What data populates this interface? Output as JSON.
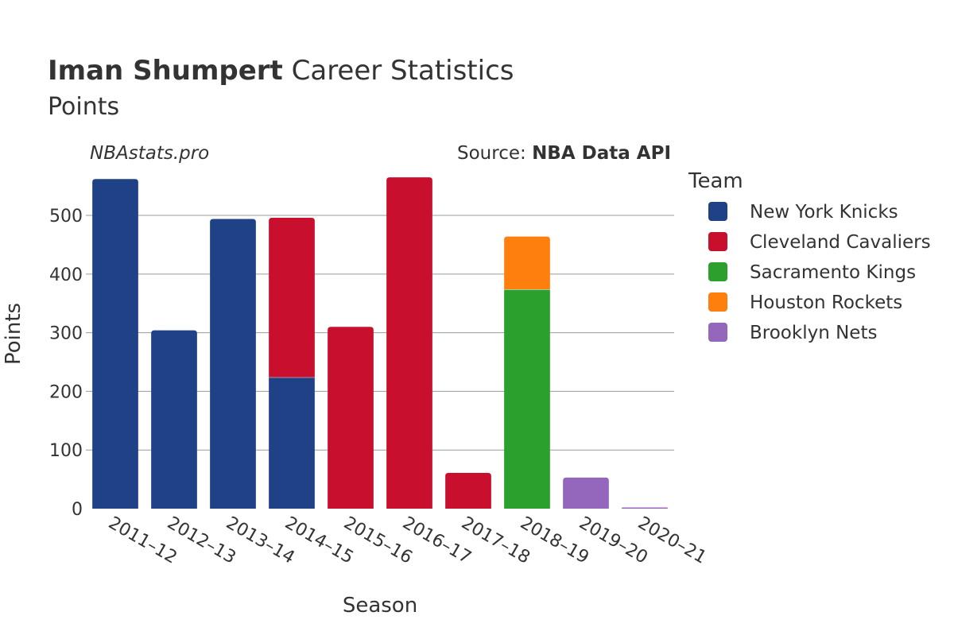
{
  "chart_data": {
    "type": "bar",
    "stacked": true,
    "title_bold": "Iman Shumpert",
    "title_rest": " Career Statistics",
    "subtitle": "Points",
    "watermark": "NBAstats.pro",
    "source_label": "Source: ",
    "source_name": "NBA Data API",
    "xlabel": "Season",
    "ylabel": "Points",
    "ylim": [
      0,
      580
    ],
    "yticks": [
      0,
      100,
      200,
      300,
      400,
      500
    ],
    "grid": true,
    "legend_title": "Team",
    "legend_position": "right",
    "categories": [
      "2011–12",
      "2012–13",
      "2013–14",
      "2014–15",
      "2015–16",
      "2016–17",
      "2017–18",
      "2018–19",
      "2019–20",
      "2020–21"
    ],
    "series": [
      {
        "name": "New York Knicks",
        "color": "#1f4287",
        "values": [
          562,
          304,
          494,
          224,
          0,
          0,
          0,
          0,
          0,
          0
        ]
      },
      {
        "name": "Cleveland Cavaliers",
        "color": "#c8102e",
        "values": [
          0,
          0,
          0,
          272,
          310,
          565,
          61,
          0,
          0,
          0
        ]
      },
      {
        "name": "Sacramento Kings",
        "color": "#2ca02c",
        "values": [
          0,
          0,
          0,
          0,
          0,
          0,
          0,
          374,
          0,
          0
        ]
      },
      {
        "name": "Houston Rockets",
        "color": "#ff7f0e",
        "values": [
          0,
          0,
          0,
          0,
          0,
          0,
          0,
          90,
          0,
          0
        ]
      },
      {
        "name": "Brooklyn Nets",
        "color": "#9467bd",
        "values": [
          0,
          0,
          0,
          0,
          0,
          0,
          0,
          0,
          53,
          2
        ]
      }
    ]
  }
}
